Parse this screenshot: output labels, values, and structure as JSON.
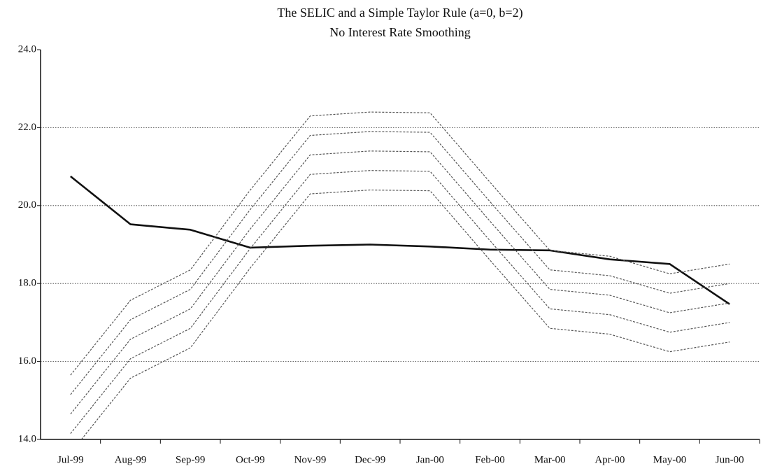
{
  "chart_data": {
    "type": "line",
    "title": "The SELIC and a Simple Taylor Rule (a=0, b=2)",
    "subtitle": "No Interest Rate Smoothing",
    "categories": [
      "Jul-99",
      "Aug-99",
      "Sep-99",
      "Oct-99",
      "Nov-99",
      "Dec-99",
      "Jan-00",
      "Feb-00",
      "Mar-00",
      "Apr-00",
      "May-00",
      "Jun-00"
    ],
    "ylim": [
      14,
      24
    ],
    "yticks": [
      {
        "value": 14,
        "label": "14.0"
      },
      {
        "value": 16,
        "label": "16.0"
      },
      {
        "value": 18,
        "label": "18.0"
      },
      {
        "value": 20,
        "label": "20.0"
      },
      {
        "value": 22,
        "label": "22.0"
      },
      {
        "value": 24,
        "label": "24.0"
      }
    ],
    "grid": true,
    "series": [
      {
        "color": "#111111",
        "style": "solid",
        "values": [
          20.75,
          19.52,
          19.38,
          18.92,
          18.97,
          19.0,
          18.95,
          18.87,
          18.85,
          18.62,
          18.5,
          17.47
        ]
      },
      {
        "color": "#555555",
        "style": "dashed",
        "values": [
          15.65,
          17.57,
          18.35,
          20.4,
          22.3,
          22.4,
          22.38,
          20.6,
          18.85,
          18.7,
          18.25,
          18.5
        ]
      },
      {
        "color": "#555555",
        "style": "dashed",
        "values": [
          15.15,
          17.07,
          17.85,
          19.9,
          21.8,
          21.9,
          21.88,
          20.1,
          18.35,
          18.2,
          17.75,
          18.0
        ]
      },
      {
        "color": "#555555",
        "style": "dashed",
        "values": [
          14.65,
          16.57,
          17.35,
          19.4,
          21.3,
          21.4,
          21.38,
          19.6,
          17.85,
          17.7,
          17.25,
          17.5
        ]
      },
      {
        "color": "#555555",
        "style": "dashed",
        "values": [
          14.15,
          16.07,
          16.85,
          18.9,
          20.8,
          20.9,
          20.88,
          19.1,
          17.35,
          17.2,
          16.75,
          17.0
        ]
      },
      {
        "color": "#555555",
        "style": "dashed",
        "values": [
          13.65,
          15.57,
          16.35,
          18.4,
          20.3,
          20.4,
          20.38,
          18.6,
          16.85,
          16.7,
          16.25,
          16.5
        ]
      }
    ]
  }
}
